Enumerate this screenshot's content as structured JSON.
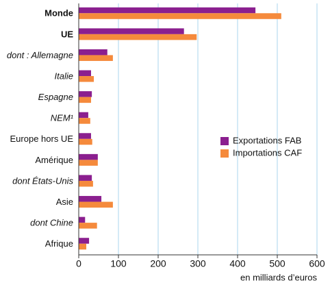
{
  "chart_data": {
    "type": "hbar",
    "categories": [
      "Monde",
      "UE",
      "dont : Allemagne",
      "Italie",
      "Espagne",
      "NEM¹",
      "Europe hors UE",
      "Amérique",
      "dont États-Unis",
      "Asie",
      "dont Chine",
      "Afrique"
    ],
    "category_styles": [
      "bold",
      "bold",
      "italic",
      "italic",
      "italic",
      "italic",
      "normal",
      "normal",
      "italic",
      "normal",
      "italic",
      "normal"
    ],
    "series": [
      {
        "name": "Exportations FAB",
        "color": "#8b1f8f",
        "values": [
          445,
          265,
          72,
          31,
          33,
          24,
          31,
          48,
          33,
          57,
          16,
          26
        ]
      },
      {
        "name": "Importations CAF",
        "color": "#f58a3c",
        "values": [
          510,
          297,
          86,
          38,
          31,
          29,
          34,
          48,
          36,
          86,
          46,
          19
        ]
      }
    ],
    "xlim": [
      0,
      600
    ],
    "xticks": [
      0,
      100,
      200,
      300,
      400,
      500,
      600
    ],
    "xlabel": "en milliards d’euros",
    "grid": true,
    "legend": "right"
  }
}
